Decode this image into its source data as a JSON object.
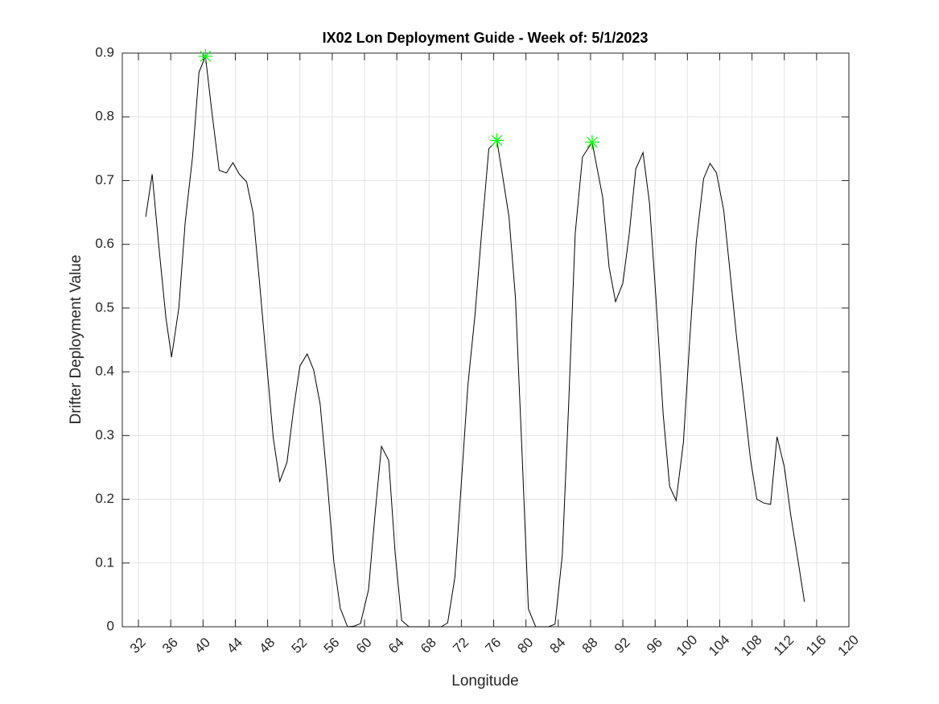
{
  "chart_data": {
    "type": "line",
    "title": "IX02 Lon Deployment Guide - Week of: 5/1/2023",
    "xlabel": "Longitude",
    "ylabel": "Drifter Deployment Value",
    "xlim": [
      30,
      120
    ],
    "ylim": [
      0,
      0.9
    ],
    "xticks": [
      32,
      36,
      40,
      44,
      48,
      52,
      56,
      60,
      64,
      68,
      72,
      76,
      80,
      84,
      88,
      92,
      96,
      100,
      104,
      108,
      112,
      116,
      120
    ],
    "yticks": [
      0,
      0.1,
      0.2,
      0.3,
      0.4,
      0.5,
      0.6,
      0.7,
      0.8,
      0.9
    ],
    "grid": true,
    "series": [
      {
        "color": "#000000",
        "marker": "none",
        "x": [
          32.9,
          33.7,
          34.5,
          35.4,
          36.1,
          37.0,
          37.8,
          38.7,
          39.5,
          40.3,
          41.1,
          42.0,
          42.9,
          43.7,
          44.5,
          45.4,
          46.2,
          47.0,
          47.9,
          48.7,
          49.5,
          50.4,
          51.2,
          52.0,
          52.9,
          53.7,
          54.5,
          55.4,
          56.2,
          57.0,
          57.9,
          58.7,
          59.5,
          60.5,
          61.3,
          62.1,
          63.0,
          63.8,
          64.6,
          65.5,
          66.3,
          67.1,
          68.0,
          68.8,
          69.5,
          70.3,
          71.2,
          72.0,
          72.8,
          73.7,
          74.5,
          75.4,
          76.4,
          77.0,
          77.9,
          78.7,
          79.5,
          80.3,
          81.2,
          82.0,
          82.8,
          83.6,
          84.5,
          85.3,
          86.1,
          87.0,
          88.2,
          89.5,
          90.3,
          91.1,
          92.0,
          92.8,
          93.6,
          94.5,
          95.3,
          96.1,
          97.0,
          97.8,
          98.6,
          99.5,
          100.3,
          101.1,
          102.0,
          102.8,
          103.6,
          104.5,
          105.3,
          106.1,
          107.0,
          107.8,
          108.6,
          109.5,
          110.3,
          111.1,
          112.0,
          112.8,
          113.6,
          114.5
        ],
        "values": [
          0.643,
          0.71,
          0.6,
          0.485,
          0.423,
          0.5,
          0.636,
          0.737,
          0.87,
          0.895,
          0.807,
          0.716,
          0.712,
          0.728,
          0.71,
          0.698,
          0.649,
          0.54,
          0.41,
          0.296,
          0.228,
          0.258,
          0.34,
          0.409,
          0.428,
          0.403,
          0.35,
          0.226,
          0.102,
          0.029,
          0,
          0.001,
          0.005,
          0.058,
          0.176,
          0.283,
          0.261,
          0.115,
          0.01,
          0,
          0,
          0,
          0,
          0,
          0,
          0.006,
          0.078,
          0.226,
          0.378,
          0.491,
          0.617,
          0.75,
          0.763,
          0.716,
          0.643,
          0.516,
          0.277,
          0.028,
          0,
          0,
          0,
          0.004,
          0.112,
          0.352,
          0.617,
          0.737,
          0.76,
          0.674,
          0.564,
          0.51,
          0.539,
          0.617,
          0.718,
          0.744,
          0.665,
          0.516,
          0.333,
          0.22,
          0.198,
          0.289,
          0.453,
          0.604,
          0.703,
          0.727,
          0.712,
          0.653,
          0.554,
          0.453,
          0.355,
          0.264,
          0.2,
          0.194,
          0.192,
          0.298,
          0.251,
          0.175,
          0.112,
          0.039
        ]
      },
      {
        "color": "#00ff00",
        "marker": "star",
        "x": [
          40.3,
          76.4,
          88.2
        ],
        "values": [
          0.895,
          0.763,
          0.76
        ]
      }
    ]
  }
}
